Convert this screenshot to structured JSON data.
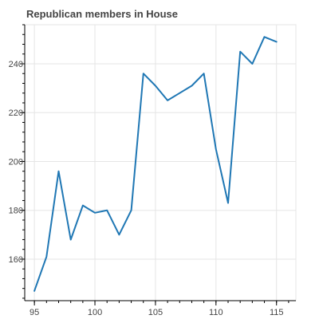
{
  "chart_data": {
    "type": "line",
    "title": "Republican members in House",
    "xlabel": "",
    "ylabel": "",
    "xlim": [
      94.2,
      116.6
    ],
    "ylim": [
      143,
      256
    ],
    "x_ticks": [
      95,
      100,
      105,
      110,
      115
    ],
    "y_ticks": [
      160,
      180,
      200,
      220,
      240
    ],
    "grid": true,
    "series": [
      {
        "color": "#1f77b4",
        "x": [
          95,
          96,
          97,
          98,
          99,
          100,
          101,
          102,
          103,
          104,
          105,
          106,
          107,
          108,
          109,
          110,
          111,
          112,
          113,
          114,
          115
        ],
        "y": [
          147,
          161,
          196,
          168,
          182,
          179,
          180,
          170,
          180,
          236,
          231,
          225,
          228,
          231,
          236,
          205,
          183,
          245,
          240,
          251,
          249
        ]
      }
    ]
  }
}
